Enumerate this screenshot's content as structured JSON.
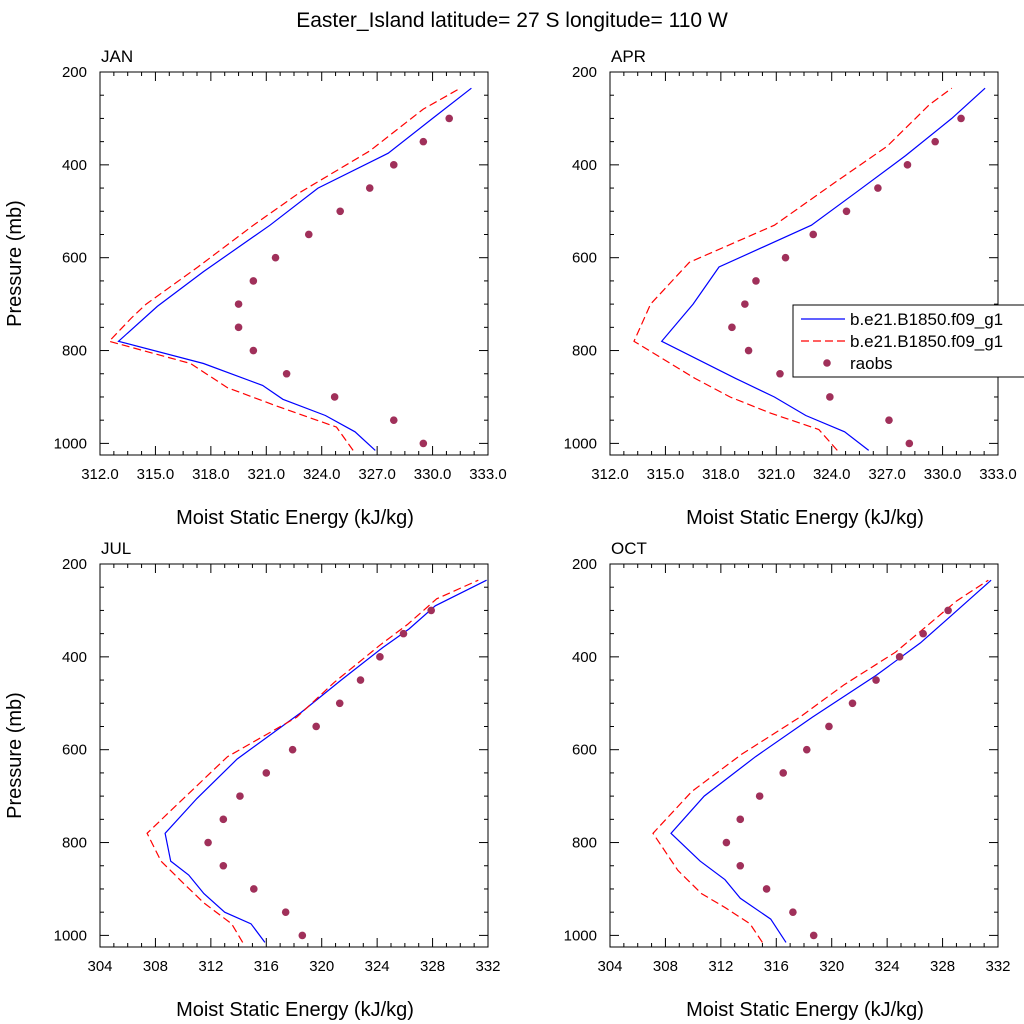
{
  "figure": {
    "title": "Easter_Island  latitude= 27 S longitude= 110 W"
  },
  "chart_data": [
    {
      "type": "line",
      "panel": "JAN",
      "xlabel": "Moist Static Energy (kJ/kg)",
      "ylabel": "Pressure (mb)",
      "xlim": [
        312,
        333
      ],
      "ylim": [
        200,
        1025
      ],
      "xticks": [
        "312.0",
        "315.0",
        "318.0",
        "321.0",
        "324.0",
        "327.0",
        "330.0",
        "333.0"
      ],
      "yticks": [
        "200",
        "400",
        "600",
        "800",
        "1000"
      ],
      "series": [
        {
          "name": "b.e21.B1850.f09_g1",
          "style": "solid",
          "color": "#0000ff",
          "points": [
            [
              326.9,
              1015
            ],
            [
              325.8,
              975
            ],
            [
              324.2,
              940
            ],
            [
              321.9,
              905
            ],
            [
              320.8,
              875
            ],
            [
              317.6,
              828
            ],
            [
              313.0,
              780
            ],
            [
              315.1,
              705
            ],
            [
              317.6,
              630
            ],
            [
              321.2,
              530
            ],
            [
              323.8,
              450
            ],
            [
              327.6,
              375
            ],
            [
              330.0,
              300
            ],
            [
              332.1,
              235
            ]
          ]
        },
        {
          "name": "b.e21.B1850.f09_g1",
          "style": "dashed",
          "color": "#ff0000",
          "points": [
            [
              325.7,
              1015
            ],
            [
              324.8,
              965
            ],
            [
              321.6,
              920
            ],
            [
              318.9,
              880
            ],
            [
              316.9,
              828
            ],
            [
              312.5,
              780
            ],
            [
              313.7,
              730
            ],
            [
              314.5,
              700
            ],
            [
              317.3,
              620
            ],
            [
              320.3,
              530
            ],
            [
              322.8,
              460
            ],
            [
              326.6,
              370
            ],
            [
              329.5,
              280
            ],
            [
              331.5,
              235
            ]
          ]
        },
        {
          "name": "raobs",
          "style": "dots",
          "color": "#a0305a",
          "points": [
            [
              329.5,
              1000
            ],
            [
              327.9,
              950
            ],
            [
              324.7,
              900
            ],
            [
              322.1,
              850
            ],
            [
              320.3,
              800
            ],
            [
              319.5,
              750
            ],
            [
              319.5,
              700
            ],
            [
              320.3,
              650
            ],
            [
              321.5,
              600
            ],
            [
              323.3,
              550
            ],
            [
              325.0,
              500
            ],
            [
              326.6,
              450
            ],
            [
              327.9,
              400
            ],
            [
              329.5,
              350
            ],
            [
              330.9,
              300
            ]
          ]
        }
      ]
    },
    {
      "type": "line",
      "panel": "APR",
      "xlabel": "Moist Static Energy (kJ/kg)",
      "ylabel": "",
      "xlim": [
        312,
        333
      ],
      "ylim": [
        200,
        1025
      ],
      "xticks": [
        "312.0",
        "315.0",
        "318.0",
        "321.0",
        "324.0",
        "327.0",
        "330.0",
        "333.0"
      ],
      "yticks": [
        "200",
        "400",
        "600",
        "800",
        "1000"
      ],
      "series": [
        {
          "name": "b.e21.B1850.f09_g1",
          "style": "solid",
          "color": "#0000ff",
          "points": [
            [
              326.0,
              1015
            ],
            [
              324.7,
              975
            ],
            [
              322.6,
              940
            ],
            [
              320.9,
              900
            ],
            [
              318.8,
              860
            ],
            [
              314.8,
              780
            ],
            [
              316.5,
              700
            ],
            [
              317.9,
              620
            ],
            [
              322.9,
              530
            ],
            [
              325.3,
              460
            ],
            [
              328.0,
              380
            ],
            [
              330.5,
              300
            ],
            [
              332.3,
              235
            ]
          ]
        },
        {
          "name": "b.e21.B1850.f09_g1",
          "style": "dashed",
          "color": "#ff0000",
          "points": [
            [
              324.3,
              1015
            ],
            [
              323.3,
              970
            ],
            [
              320.7,
              935
            ],
            [
              318.5,
              900
            ],
            [
              316.6,
              860
            ],
            [
              313.3,
              780
            ],
            [
              314.2,
              700
            ],
            [
              316.3,
              610
            ],
            [
              320.9,
              530
            ],
            [
              324.1,
              440
            ],
            [
              327.0,
              360
            ],
            [
              329.3,
              270
            ],
            [
              330.5,
              235
            ]
          ]
        },
        {
          "name": "raobs",
          "style": "dots",
          "color": "#a0305a",
          "points": [
            [
              328.2,
              1000
            ],
            [
              327.1,
              950
            ],
            [
              323.9,
              900
            ],
            [
              321.2,
              850
            ],
            [
              319.5,
              800
            ],
            [
              318.6,
              750
            ],
            [
              319.3,
              700
            ],
            [
              319.9,
              650
            ],
            [
              321.5,
              600
            ],
            [
              323.0,
              550
            ],
            [
              324.8,
              500
            ],
            [
              326.5,
              450
            ],
            [
              328.1,
              400
            ],
            [
              329.6,
              350
            ],
            [
              331.0,
              300
            ]
          ]
        }
      ]
    },
    {
      "type": "line",
      "panel": "JUL",
      "xlabel": "Moist Static Energy (kJ/kg)",
      "ylabel": "Pressure (mb)",
      "xlim": [
        304,
        332
      ],
      "ylim": [
        200,
        1025
      ],
      "xticks": [
        "304",
        "308",
        "312",
        "316",
        "320",
        "324",
        "328",
        "332"
      ],
      "yticks": [
        "200",
        "400",
        "600",
        "800",
        "1000"
      ],
      "series": [
        {
          "name": "b.e21.B1850.f09_g1",
          "style": "solid",
          "color": "#0000ff",
          "points": [
            [
              315.9,
              1015
            ],
            [
              314.9,
              975
            ],
            [
              313.0,
              950
            ],
            [
              311.5,
              910
            ],
            [
              310.4,
              870
            ],
            [
              309.1,
              840
            ],
            [
              308.7,
              780
            ],
            [
              311.0,
              705
            ],
            [
              313.9,
              620
            ],
            [
              318.5,
              520
            ],
            [
              321.4,
              450
            ],
            [
              324.4,
              380
            ],
            [
              326.3,
              340
            ],
            [
              328.2,
              290
            ],
            [
              331.9,
              235
            ]
          ]
        },
        {
          "name": "b.e21.B1850.f09_g1",
          "style": "dashed",
          "color": "#ff0000",
          "points": [
            [
              314.3,
              1015
            ],
            [
              313.5,
              975
            ],
            [
              311.5,
              930
            ],
            [
              310.1,
              890
            ],
            [
              308.4,
              840
            ],
            [
              307.4,
              780
            ],
            [
              309.5,
              720
            ],
            [
              313.2,
              615
            ],
            [
              318.2,
              530
            ],
            [
              320.9,
              455
            ],
            [
              324.2,
              375
            ],
            [
              326.2,
              330
            ],
            [
              328.3,
              275
            ],
            [
              331.3,
              235
            ]
          ]
        },
        {
          "name": "raobs",
          "style": "dots",
          "color": "#a0305a",
          "points": [
            [
              318.6,
              1000
            ],
            [
              317.4,
              950
            ],
            [
              315.1,
              900
            ],
            [
              312.9,
              850
            ],
            [
              311.8,
              800
            ],
            [
              312.9,
              750
            ],
            [
              314.1,
              700
            ],
            [
              316.0,
              650
            ],
            [
              317.9,
              600
            ],
            [
              319.6,
              550
            ],
            [
              321.3,
              500
            ],
            [
              322.8,
              450
            ],
            [
              324.2,
              400
            ],
            [
              325.9,
              350
            ],
            [
              327.9,
              300
            ]
          ]
        }
      ]
    },
    {
      "type": "line",
      "panel": "OCT",
      "xlabel": "Moist Static Energy (kJ/kg)",
      "ylabel": "",
      "xlim": [
        304,
        332
      ],
      "ylim": [
        200,
        1025
      ],
      "xticks": [
        "304",
        "308",
        "312",
        "316",
        "320",
        "324",
        "328",
        "332"
      ],
      "yticks": [
        "200",
        "400",
        "600",
        "800",
        "1000"
      ],
      "series": [
        {
          "name": "b.e21.B1850.f09_g1",
          "style": "solid",
          "color": "#0000ff",
          "points": [
            [
              316.7,
              1015
            ],
            [
              315.6,
              965
            ],
            [
              313.4,
              920
            ],
            [
              312.3,
              880
            ],
            [
              310.5,
              840
            ],
            [
              308.4,
              780
            ],
            [
              310.8,
              700
            ],
            [
              314.5,
              615
            ],
            [
              318.6,
              530
            ],
            [
              323.2,
              440
            ],
            [
              326.4,
              370
            ],
            [
              328.3,
              320
            ],
            [
              331.5,
              235
            ]
          ]
        },
        {
          "name": "b.e21.B1850.f09_g1",
          "style": "dashed",
          "color": "#ff0000",
          "points": [
            [
              315.0,
              1015
            ],
            [
              314.1,
              975
            ],
            [
              312.3,
              940
            ],
            [
              310.6,
              910
            ],
            [
              308.9,
              860
            ],
            [
              307.1,
              780
            ],
            [
              309.9,
              690
            ],
            [
              313.5,
              610
            ],
            [
              317.7,
              530
            ],
            [
              320.9,
              460
            ],
            [
              324.6,
              390
            ],
            [
              327.0,
              330
            ],
            [
              329.0,
              280
            ],
            [
              331.3,
              235
            ]
          ]
        },
        {
          "name": "raobs",
          "style": "dots",
          "color": "#a0305a",
          "points": [
            [
              318.7,
              1000
            ],
            [
              317.2,
              950
            ],
            [
              315.3,
              900
            ],
            [
              313.4,
              850
            ],
            [
              312.4,
              800
            ],
            [
              313.4,
              750
            ],
            [
              314.8,
              700
            ],
            [
              316.5,
              650
            ],
            [
              318.2,
              600
            ],
            [
              319.8,
              550
            ],
            [
              321.5,
              500
            ],
            [
              323.2,
              450
            ],
            [
              324.9,
              400
            ],
            [
              326.6,
              350
            ],
            [
              328.4,
              300
            ]
          ]
        }
      ]
    }
  ],
  "legend": {
    "entries": [
      {
        "label": "b.e21.B1850.f09_g1",
        "style": "solid",
        "color": "#0000ff"
      },
      {
        "label": "b.e21.B1850.f09_g1",
        "style": "dashed",
        "color": "#ff0000"
      },
      {
        "label": "raobs",
        "style": "dots",
        "color": "#a0305a"
      }
    ],
    "placement": "right"
  }
}
